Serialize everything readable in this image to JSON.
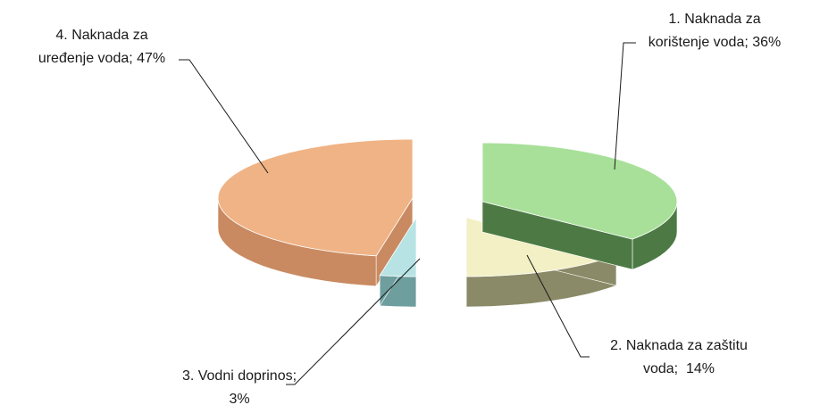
{
  "chart_data": {
    "type": "pie",
    "style": "3d-exploded",
    "title": "",
    "legend": "none",
    "slices": [
      {
        "index": 1,
        "label_lines": [
          "1. Naknada za",
          "korištenje voda; 36%"
        ],
        "category": "Naknada za korištenje voda",
        "value": 36,
        "color_top": "#a8e09a",
        "color_side": "#4d7a44"
      },
      {
        "index": 2,
        "label_lines": [
          "2. Naknada za zaštitu",
          "voda;  14%"
        ],
        "category": "Naknada za zaštitu voda",
        "value": 14,
        "color_top": "#f2f0c4",
        "color_side": "#8a8a68"
      },
      {
        "index": 3,
        "label_lines": [
          "3. Vodni doprinos;",
          "3%"
        ],
        "category": "Vodni doprinos",
        "value": 3,
        "color_top": "#b7e3e4",
        "color_side": "#6e9e9e"
      },
      {
        "index": 4,
        "label_lines": [
          "4. Naknada za",
          "uređenje voda; 47%"
        ],
        "category": "Naknada za uređenje voda",
        "value": 47,
        "color_top": "#f0b385",
        "color_side": "#c98a61"
      }
    ]
  }
}
